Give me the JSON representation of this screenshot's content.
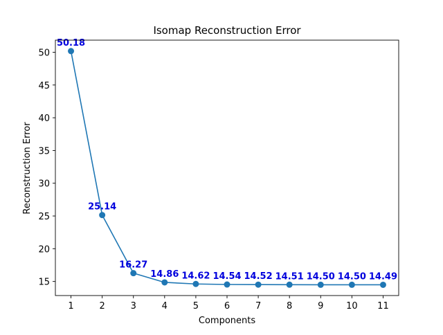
{
  "chart_data": {
    "type": "line",
    "title": "Isomap Reconstruction Error",
    "xlabel": "Components",
    "ylabel": "Reconstruction Error",
    "x": [
      1,
      2,
      3,
      4,
      5,
      6,
      7,
      8,
      9,
      10,
      11
    ],
    "series": [
      {
        "values": [
          50.18,
          25.14,
          16.27,
          14.86,
          14.62,
          14.54,
          14.52,
          14.51,
          14.5,
          14.5,
          14.49
        ],
        "labels": [
          "50.18",
          "25.14",
          "16.27",
          "14.86",
          "14.62",
          "14.54",
          "14.52",
          "14.51",
          "14.50",
          "14.50",
          "14.49"
        ],
        "color": "#1f77b4",
        "marker": "circle"
      }
    ],
    "xlim": [
      0.5,
      11.5
    ],
    "ylim": [
      12.85,
      51.85
    ],
    "xticks": [
      1,
      2,
      3,
      4,
      5,
      6,
      7,
      8,
      9,
      10,
      11
    ],
    "xtick_labels": [
      "1",
      "2",
      "3",
      "4",
      "5",
      "6",
      "7",
      "8",
      "9",
      "10",
      "11"
    ],
    "yticks": [
      15,
      20,
      25,
      30,
      35,
      40,
      45,
      50
    ],
    "ytick_labels": [
      "15",
      "20",
      "25",
      "30",
      "35",
      "40",
      "45",
      "50"
    ],
    "data_label_color": "#0000dd",
    "grid": false,
    "legend": false
  }
}
